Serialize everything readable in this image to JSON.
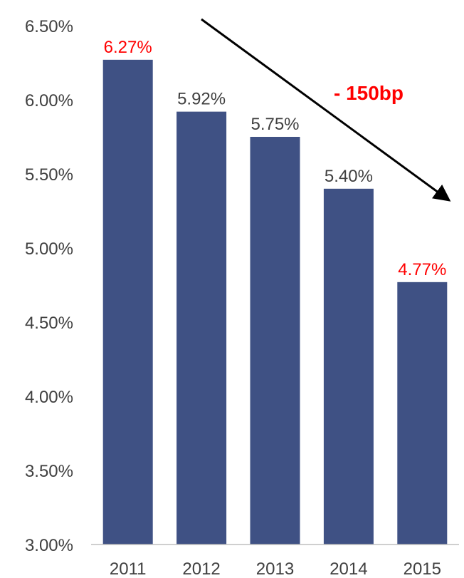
{
  "chart_data": {
    "type": "bar",
    "categories": [
      "2011",
      "2012",
      "2013",
      "2014",
      "2015"
    ],
    "values": [
      6.27,
      5.92,
      5.75,
      5.4,
      4.77
    ],
    "data_labels": [
      "6.27%",
      "5.92%",
      "5.75%",
      "5.40%",
      "4.77%"
    ],
    "highlighted_labels": [
      true,
      false,
      false,
      false,
      true
    ],
    "y_ticks": [
      3.0,
      3.5,
      4.0,
      4.5,
      5.0,
      5.5,
      6.0,
      6.5
    ],
    "y_tick_labels": [
      "3.00%",
      "3.50%",
      "4.00%",
      "4.50%",
      "5.00%",
      "5.50%",
      "6.00%",
      "6.50%"
    ],
    "ylim": [
      3.0,
      6.5
    ],
    "grid": false,
    "annotation": "- 150bp",
    "colors": {
      "bar": "#3f5184",
      "label": "#404040",
      "highlight": "#ff0000",
      "annotation": "#ff0000",
      "axis": "#bfbfbf",
      "arrow": "#000000"
    }
  }
}
